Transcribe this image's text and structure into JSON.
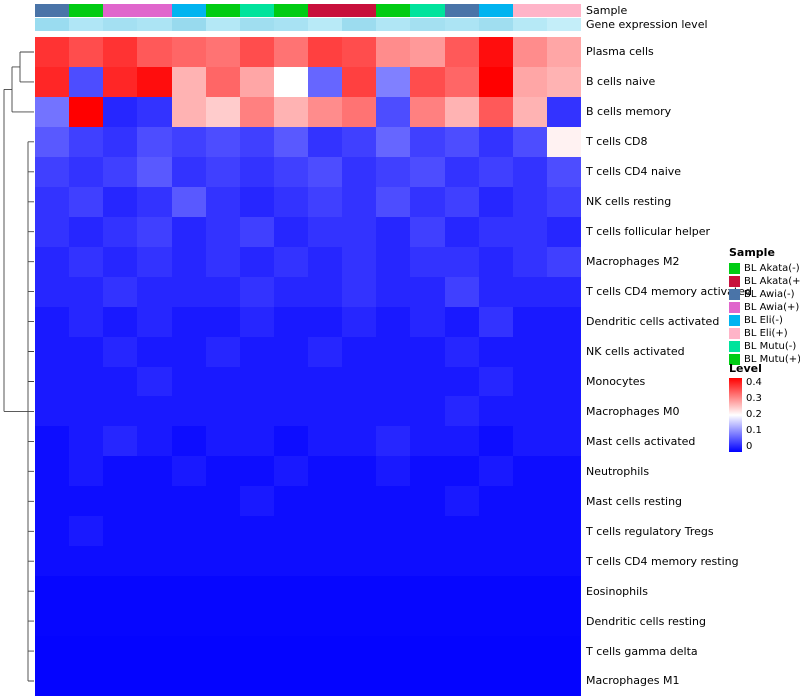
{
  "chart_data": {
    "type": "heatmap",
    "title": "",
    "n_cols": 16,
    "rows": [
      "Plasma cells",
      "B cells naive",
      "B cells memory",
      "T cells CD8",
      "T cells CD4 naive",
      "NK cells resting",
      "T cells follicular helper",
      "Macrophages M2",
      "T cells CD4 memory activated",
      "Dendritic cells activated",
      "NK cells activated",
      "Monocytes",
      "Macrophages M0",
      "Mast cells activated",
      "Neutrophils",
      "Mast cells resting",
      "T cells regulatory  Tregs",
      "T cells CD4 memory resting",
      "Eosinophils",
      "Dendritic cells resting",
      "T cells gamma delta",
      "Macrophages M1"
    ],
    "values": [
      [
        0.36,
        0.34,
        0.36,
        0.33,
        0.32,
        0.31,
        0.34,
        0.31,
        0.35,
        0.34,
        0.29,
        0.28,
        0.33,
        0.39,
        0.29,
        0.27
      ],
      [
        0.37,
        0.06,
        0.37,
        0.39,
        0.26,
        0.32,
        0.27,
        0.2,
        0.08,
        0.35,
        0.1,
        0.34,
        0.32,
        0.4,
        0.27,
        0.26
      ],
      [
        0.09,
        0.4,
        0.03,
        0.04,
        0.26,
        0.24,
        0.3,
        0.26,
        0.29,
        0.31,
        0.06,
        0.3,
        0.26,
        0.33,
        0.26,
        0.04
      ],
      [
        0.07,
        0.05,
        0.04,
        0.06,
        0.05,
        0.06,
        0.05,
        0.07,
        0.04,
        0.05,
        0.08,
        0.05,
        0.06,
        0.04,
        0.06,
        0.21
      ],
      [
        0.05,
        0.04,
        0.05,
        0.07,
        0.04,
        0.05,
        0.04,
        0.05,
        0.06,
        0.04,
        0.05,
        0.06,
        0.04,
        0.05,
        0.04,
        0.06
      ],
      [
        0.04,
        0.05,
        0.03,
        0.04,
        0.07,
        0.04,
        0.03,
        0.04,
        0.05,
        0.04,
        0.06,
        0.04,
        0.05,
        0.03,
        0.04,
        0.05
      ],
      [
        0.04,
        0.03,
        0.04,
        0.05,
        0.03,
        0.04,
        0.05,
        0.03,
        0.04,
        0.04,
        0.03,
        0.05,
        0.03,
        0.04,
        0.04,
        0.03
      ],
      [
        0.03,
        0.04,
        0.03,
        0.04,
        0.03,
        0.04,
        0.03,
        0.04,
        0.03,
        0.04,
        0.03,
        0.04,
        0.04,
        0.03,
        0.04,
        0.05
      ],
      [
        0.03,
        0.03,
        0.04,
        0.03,
        0.03,
        0.03,
        0.04,
        0.03,
        0.03,
        0.04,
        0.03,
        0.03,
        0.05,
        0.03,
        0.03,
        0.03
      ],
      [
        0.02,
        0.03,
        0.02,
        0.03,
        0.02,
        0.02,
        0.03,
        0.02,
        0.02,
        0.03,
        0.02,
        0.03,
        0.02,
        0.04,
        0.02,
        0.02
      ],
      [
        0.02,
        0.02,
        0.03,
        0.02,
        0.02,
        0.03,
        0.02,
        0.02,
        0.03,
        0.02,
        0.02,
        0.02,
        0.03,
        0.02,
        0.02,
        0.02
      ],
      [
        0.02,
        0.02,
        0.02,
        0.03,
        0.02,
        0.02,
        0.02,
        0.02,
        0.02,
        0.02,
        0.02,
        0.02,
        0.02,
        0.03,
        0.02,
        0.02
      ],
      [
        0.02,
        0.02,
        0.02,
        0.02,
        0.02,
        0.02,
        0.02,
        0.02,
        0.02,
        0.02,
        0.02,
        0.02,
        0.03,
        0.02,
        0.02,
        0.02
      ],
      [
        0.01,
        0.02,
        0.03,
        0.02,
        0.01,
        0.02,
        0.02,
        0.01,
        0.02,
        0.02,
        0.03,
        0.02,
        0.02,
        0.01,
        0.02,
        0.02
      ],
      [
        0.01,
        0.02,
        0.01,
        0.01,
        0.02,
        0.01,
        0.01,
        0.02,
        0.01,
        0.01,
        0.02,
        0.01,
        0.01,
        0.02,
        0.01,
        0.01
      ],
      [
        0.01,
        0.01,
        0.01,
        0.01,
        0.01,
        0.01,
        0.02,
        0.01,
        0.01,
        0.01,
        0.01,
        0.01,
        0.02,
        0.01,
        0.01,
        0.01
      ],
      [
        0.01,
        0.02,
        0.01,
        0.01,
        0.01,
        0.01,
        0.01,
        0.01,
        0.01,
        0.01,
        0.01,
        0.01,
        0.01,
        0.01,
        0.01,
        0.01
      ],
      [
        0.01,
        0.01,
        0.01,
        0.01,
        0.01,
        0.01,
        0.01,
        0.01,
        0.01,
        0.01,
        0.01,
        0.01,
        0.01,
        0.01,
        0.01,
        0.01
      ],
      [
        0.005,
        0.005,
        0.005,
        0.005,
        0.005,
        0.005,
        0.005,
        0.005,
        0.005,
        0.005,
        0.005,
        0.005,
        0.005,
        0.005,
        0.005,
        0.005
      ],
      [
        0.005,
        0.005,
        0.005,
        0.005,
        0.005,
        0.005,
        0.005,
        0.005,
        0.005,
        0.005,
        0.005,
        0.005,
        0.005,
        0.005,
        0.005,
        0.005
      ],
      [
        0.003,
        0.003,
        0.003,
        0.003,
        0.003,
        0.003,
        0.003,
        0.003,
        0.003,
        0.003,
        0.003,
        0.003,
        0.003,
        0.003,
        0.003,
        0.003
      ],
      [
        0.003,
        0.003,
        0.003,
        0.003,
        0.003,
        0.003,
        0.003,
        0.003,
        0.003,
        0.003,
        0.003,
        0.003,
        0.003,
        0.003,
        0.003,
        0.003
      ]
    ],
    "colorscale": {
      "min": 0,
      "mid": 0.2,
      "max": 0.4,
      "min_color": "#0000FF",
      "mid_color": "#FFFFFF",
      "max_color": "#FF0000"
    },
    "column_annotations": {
      "sample_colors": [
        "#4A74A8",
        "#00CC14",
        "#E066CC",
        "#E066CC",
        "#00B4F0",
        "#00CC14",
        "#00E39C",
        "#00CC14",
        "#C8103C",
        "#C8103C",
        "#00CC14",
        "#00E39C",
        "#4A74A8",
        "#00B4F0",
        "#FFB4C8",
        "#FFB4C8"
      ],
      "gene_expression_colors": [
        "#9ADCF0",
        "#B0E6F6",
        "#A4E0F2",
        "#ACE4F4",
        "#98DAEE",
        "#B4E8F6",
        "#A0DEF0",
        "#A8E2F3",
        "#B8EAF7",
        "#9CDCEF",
        "#B0E6F5",
        "#A4E0F1",
        "#ACE4F4",
        "#A0DEF0",
        "#B6E9F6",
        "#C4EEF9"
      ]
    }
  },
  "annotation_labels": {
    "sample": "Sample",
    "gene_expression": "Gene expression level"
  },
  "legend_sample": {
    "title": "Sample",
    "items": [
      {
        "label": "BL Akata(-)",
        "color": "#00CC14"
      },
      {
        "label": "BL Akata(+)",
        "color": "#C8103C"
      },
      {
        "label": "BL Awia(-)",
        "color": "#4A74A8"
      },
      {
        "label": "BL Awia(+)",
        "color": "#E066CC"
      },
      {
        "label": "BL Eli(-)",
        "color": "#00B4F0"
      },
      {
        "label": "BL Eli(+)",
        "color": "#FFB4C8"
      },
      {
        "label": "BL Mutu(-)",
        "color": "#00E39C"
      },
      {
        "label": "BL Mutu(+)",
        "color": "#00CC14"
      }
    ]
  },
  "legend_level": {
    "title": "Level",
    "ticks": [
      "0.4",
      "0.3",
      "0.2",
      "0.1",
      "0"
    ],
    "gradient_top": "#FF0000",
    "gradient_mid": "#FFFFFF",
    "gradient_bottom": "#0000FF"
  }
}
